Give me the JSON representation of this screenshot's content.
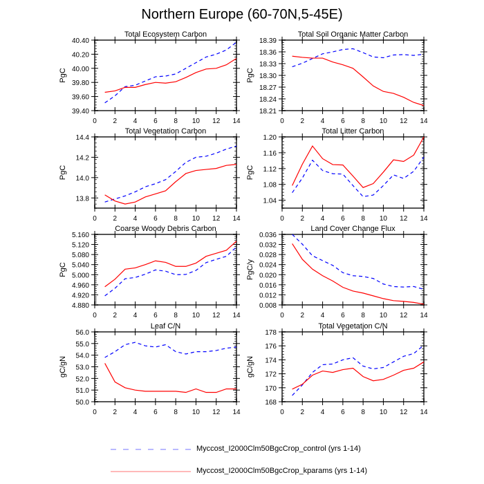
{
  "title": "Northern Europe (60-70N,5-45E)",
  "legend": [
    {
      "label": "Myccost_I2000Clm50BgcCrop_control (yrs 1-14)",
      "color": "#0000ff",
      "style": "dashed"
    },
    {
      "label": "Myccost_I2000Clm50BgcCrop_kparams (yrs 1-14)",
      "color": "#ff0000",
      "style": "solid"
    }
  ],
  "chart_data": [
    {
      "type": "line",
      "title": "Total Ecosystem Carbon",
      "ylabel": "PgC",
      "xlim": [
        0,
        14
      ],
      "xticks": [
        "0",
        "2",
        "4",
        "6",
        "8",
        "10",
        "12",
        "14"
      ],
      "ylim": [
        39.4,
        40.4
      ],
      "yticks": [
        "39.40",
        "39.60",
        "39.80",
        "40.00",
        "40.20",
        "40.40"
      ],
      "x": [
        1,
        2,
        3,
        4,
        5,
        6,
        7,
        8,
        9,
        10,
        11,
        12,
        13,
        14
      ],
      "series": [
        {
          "name": "control",
          "values": [
            39.51,
            39.61,
            39.74,
            39.76,
            39.82,
            39.88,
            39.89,
            39.92,
            40.0,
            40.08,
            40.16,
            40.2,
            40.26,
            40.37
          ]
        },
        {
          "name": "kparams",
          "values": [
            39.66,
            39.68,
            39.73,
            39.73,
            39.77,
            39.8,
            39.79,
            39.81,
            39.87,
            39.94,
            39.99,
            40.0,
            40.05,
            40.14
          ]
        }
      ]
    },
    {
      "type": "line",
      "title": "Total Soil Organic Matter Carbon",
      "ylabel": "PgC",
      "xlim": [
        0,
        14
      ],
      "xticks": [
        "0",
        "2",
        "4",
        "6",
        "8",
        "10",
        "12",
        "14"
      ],
      "ylim": [
        18.21,
        18.39
      ],
      "yticks": [
        "18.21",
        "18.24",
        "18.27",
        "18.30",
        "18.33",
        "18.36",
        "18.39"
      ],
      "x": [
        1,
        2,
        3,
        4,
        5,
        6,
        7,
        8,
        9,
        10,
        11,
        12,
        13,
        14
      ],
      "series": [
        {
          "name": "control",
          "values": [
            18.322,
            18.331,
            18.343,
            18.355,
            18.36,
            18.366,
            18.368,
            18.358,
            18.347,
            18.345,
            18.352,
            18.353,
            18.351,
            18.354
          ]
        },
        {
          "name": "kparams",
          "values": [
            18.349,
            18.346,
            18.344,
            18.344,
            18.334,
            18.327,
            18.318,
            18.296,
            18.273,
            18.259,
            18.254,
            18.244,
            18.231,
            18.223
          ]
        }
      ]
    },
    {
      "type": "line",
      "title": "Total Vegetation Carbon",
      "ylabel": "PgC",
      "xlim": [
        0,
        14
      ],
      "xticks": [
        "0",
        "2",
        "4",
        "6",
        "8",
        "10",
        "12",
        "14"
      ],
      "ylim": [
        13.7,
        14.4
      ],
      "yticks": [
        "13.8",
        "14.0",
        "14.2",
        "14.4"
      ],
      "x": [
        1,
        2,
        3,
        4,
        5,
        6,
        7,
        8,
        9,
        10,
        11,
        12,
        13,
        14
      ],
      "series": [
        {
          "name": "control",
          "values": [
            13.76,
            13.79,
            13.82,
            13.86,
            13.91,
            13.94,
            13.98,
            14.06,
            14.15,
            14.2,
            14.21,
            14.24,
            14.28,
            14.31
          ]
        },
        {
          "name": "kparams",
          "values": [
            13.83,
            13.77,
            13.74,
            13.76,
            13.81,
            13.84,
            13.87,
            13.96,
            14.04,
            14.07,
            14.08,
            14.09,
            14.12,
            14.13
          ]
        }
      ]
    },
    {
      "type": "line",
      "title": "Total Litter Carbon",
      "ylabel": "PgC",
      "xlim": [
        0,
        14
      ],
      "xticks": [
        "0",
        "2",
        "4",
        "6",
        "8",
        "10",
        "12",
        "14"
      ],
      "ylim": [
        1.02,
        1.2
      ],
      "yticks": [
        "1.04",
        "1.08",
        "1.12",
        "1.16",
        "1.20"
      ],
      "x": [
        1,
        2,
        3,
        4,
        5,
        6,
        7,
        8,
        9,
        10,
        11,
        12,
        13,
        14
      ],
      "series": [
        {
          "name": "control",
          "values": [
            1.059,
            1.096,
            1.141,
            1.115,
            1.107,
            1.106,
            1.077,
            1.049,
            1.053,
            1.077,
            1.104,
            1.095,
            1.113,
            1.149
          ]
        },
        {
          "name": "kparams",
          "values": [
            1.077,
            1.131,
            1.177,
            1.145,
            1.13,
            1.129,
            1.101,
            1.072,
            1.082,
            1.111,
            1.142,
            1.138,
            1.154,
            1.2
          ]
        }
      ]
    },
    {
      "type": "line",
      "title": "Coarse Woody Debris Carbon",
      "ylabel": "PgC",
      "xlim": [
        0,
        14
      ],
      "xticks": [
        "0",
        "2",
        "4",
        "6",
        "8",
        "10",
        "12",
        "14"
      ],
      "ylim": [
        4.88,
        5.16
      ],
      "yticks": [
        "4.880",
        "4.920",
        "4.960",
        "5.000",
        "5.040",
        "5.080",
        "5.120",
        "5.160"
      ],
      "x": [
        1,
        2,
        3,
        4,
        5,
        6,
        7,
        8,
        9,
        10,
        11,
        12,
        13,
        14
      ],
      "series": [
        {
          "name": "control",
          "values": [
            4.916,
            4.946,
            4.984,
            4.989,
            5.002,
            5.019,
            5.014,
            5.0,
            5.001,
            5.017,
            5.048,
            5.061,
            5.073,
            5.11
          ]
        },
        {
          "name": "kparams",
          "values": [
            4.952,
            4.982,
            5.022,
            5.027,
            5.04,
            5.055,
            5.049,
            5.033,
            5.033,
            5.046,
            5.073,
            5.085,
            5.097,
            5.133
          ]
        }
      ]
    },
    {
      "type": "line",
      "title": "Land Cover Change Flux",
      "ylabel": "PgC/y",
      "xlim": [
        0,
        14
      ],
      "xticks": [
        "0",
        "2",
        "4",
        "6",
        "8",
        "10",
        "12",
        "14"
      ],
      "ylim": [
        0.008,
        0.036
      ],
      "yticks": [
        "0.008",
        "0.012",
        "0.016",
        "0.020",
        "0.024",
        "0.028",
        "0.032",
        "0.036"
      ],
      "x": [
        1,
        2,
        3,
        4,
        5,
        6,
        7,
        8,
        9,
        10,
        11,
        12,
        13,
        14
      ],
      "series": [
        {
          "name": "control",
          "values": [
            0.036,
            0.0321,
            0.0275,
            0.0256,
            0.0237,
            0.0208,
            0.0196,
            0.0193,
            0.0185,
            0.0163,
            0.0153,
            0.0151,
            0.0153,
            0.0142
          ]
        },
        {
          "name": "kparams",
          "values": [
            0.0323,
            0.0261,
            0.0222,
            0.0196,
            0.0175,
            0.015,
            0.0135,
            0.0127,
            0.0116,
            0.0105,
            0.0097,
            0.0094,
            0.009,
            0.0083
          ]
        }
      ]
    },
    {
      "type": "line",
      "title": "Leaf C/N",
      "ylabel": "gC/gN",
      "xlim": [
        0,
        14
      ],
      "xticks": [
        "0",
        "2",
        "4",
        "6",
        "8",
        "10",
        "12",
        "14"
      ],
      "ylim": [
        50.0,
        56.0
      ],
      "yticks": [
        "50.0",
        "51.0",
        "52.0",
        "53.0",
        "54.0",
        "55.0",
        "56.0"
      ],
      "x": [
        1,
        2,
        3,
        4,
        5,
        6,
        7,
        8,
        9,
        10,
        11,
        12,
        13,
        14
      ],
      "series": [
        {
          "name": "control",
          "values": [
            53.8,
            54.3,
            54.9,
            55.1,
            54.8,
            54.7,
            54.9,
            54.3,
            54.1,
            54.3,
            54.3,
            54.4,
            54.6,
            54.7
          ]
        },
        {
          "name": "kparams",
          "values": [
            53.3,
            51.7,
            51.2,
            51.0,
            50.9,
            50.9,
            50.9,
            50.9,
            50.8,
            51.1,
            50.8,
            50.8,
            51.1,
            51.1
          ]
        }
      ]
    },
    {
      "type": "line",
      "title": "Total Vegetation C/N",
      "ylabel": "gC/gN",
      "xlim": [
        0,
        14
      ],
      "xticks": [
        "0",
        "2",
        "4",
        "6",
        "8",
        "10",
        "12",
        "14"
      ],
      "ylim": [
        168,
        178
      ],
      "yticks": [
        "168",
        "170",
        "172",
        "174",
        "176",
        "178"
      ],
      "x": [
        1,
        2,
        3,
        4,
        5,
        6,
        7,
        8,
        9,
        10,
        11,
        12,
        13,
        14
      ],
      "series": [
        {
          "name": "control",
          "values": [
            168.9,
            170.4,
            172.2,
            173.3,
            173.4,
            174.0,
            174.3,
            173.1,
            172.7,
            172.9,
            173.7,
            174.5,
            174.9,
            176.1
          ]
        },
        {
          "name": "kparams",
          "values": [
            169.8,
            170.5,
            171.8,
            172.4,
            172.2,
            172.6,
            172.8,
            171.6,
            171.0,
            171.2,
            171.8,
            172.5,
            172.8,
            173.7
          ]
        }
      ]
    }
  ]
}
